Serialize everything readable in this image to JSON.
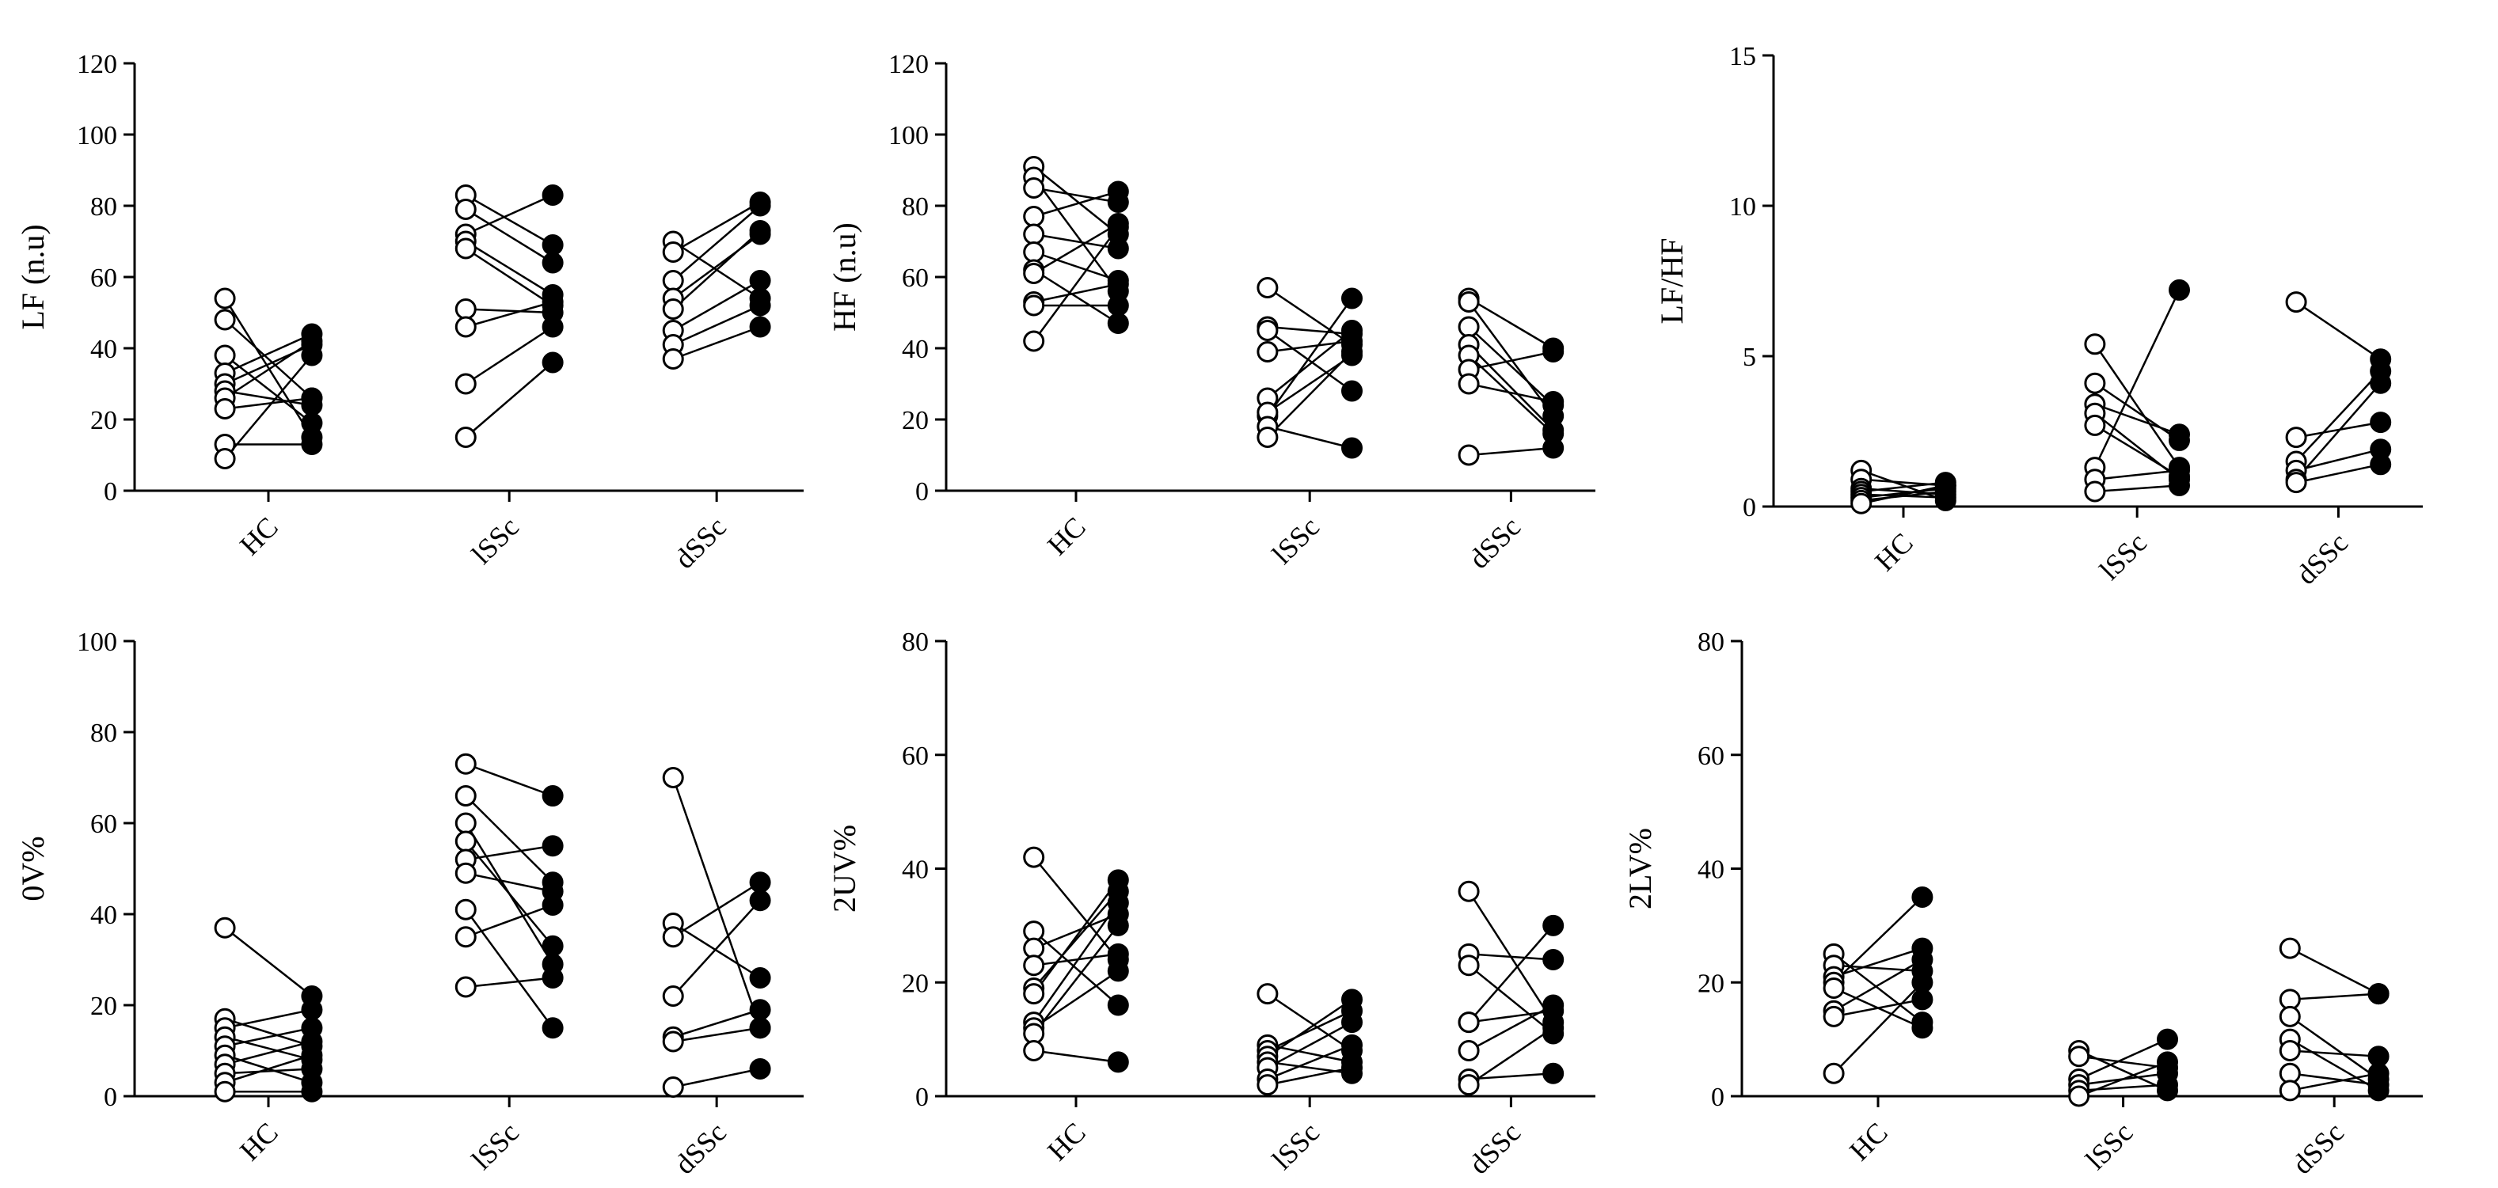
{
  "chart_data": [
    {
      "type": "scatter",
      "ylabel": "LF (n.u)",
      "ylim": [
        0,
        120
      ],
      "yticks": [
        0,
        20,
        40,
        60,
        80,
        100,
        120
      ],
      "categories": [
        "HC",
        "lSSc",
        "dSSc"
      ],
      "groups": [
        {
          "name": "HC",
          "pairs": [
            [
              54,
              15
            ],
            [
              48,
              26
            ],
            [
              38,
              19
            ],
            [
              33,
              44
            ],
            [
              30,
              41
            ],
            [
              28,
              24
            ],
            [
              26,
              42
            ],
            [
              23,
              26
            ],
            [
              13,
              13
            ],
            [
              9,
              38
            ]
          ]
        },
        {
          "name": "lSSc",
          "pairs": [
            [
              83,
              69
            ],
            [
              79,
              64
            ],
            [
              72,
              83
            ],
            [
              70,
              55
            ],
            [
              68,
              52
            ],
            [
              51,
              50
            ],
            [
              46,
              53
            ],
            [
              30,
              46
            ],
            [
              15,
              36
            ]
          ]
        },
        {
          "name": "dSSc",
          "pairs": [
            [
              70,
              54
            ],
            [
              67,
              81
            ],
            [
              59,
              80
            ],
            [
              54,
              72
            ],
            [
              51,
              73
            ],
            [
              45,
              59
            ],
            [
              41,
              52
            ],
            [
              37,
              46
            ]
          ]
        }
      ]
    },
    {
      "type": "scatter",
      "ylabel": "HF (n.u)",
      "ylim": [
        0,
        120
      ],
      "yticks": [
        0,
        20,
        40,
        60,
        80,
        100,
        120
      ],
      "categories": [
        "HC",
        "lSSc",
        "dSSc"
      ],
      "groups": [
        {
          "name": "HC",
          "pairs": [
            [
              91,
              72
            ],
            [
              88,
              56
            ],
            [
              85,
              81
            ],
            [
              77,
              84
            ],
            [
              72,
              68
            ],
            [
              67,
              59
            ],
            [
              62,
              47
            ],
            [
              61,
              75
            ],
            [
              53,
              58
            ],
            [
              52,
              52
            ],
            [
              42,
              74
            ]
          ]
        },
        {
          "name": "lSSc",
          "pairs": [
            [
              57,
              41
            ],
            [
              46,
              44
            ],
            [
              45,
              28
            ],
            [
              39,
              42
            ],
            [
              26,
              45
            ],
            [
              21,
              54
            ],
            [
              22,
              38
            ],
            [
              18,
              12
            ],
            [
              15,
              39
            ]
          ]
        },
        {
          "name": "dSSc",
          "pairs": [
            [
              54,
              40
            ],
            [
              53,
              21
            ],
            [
              46,
              24
            ],
            [
              41,
              17
            ],
            [
              38,
              16
            ],
            [
              34,
              39
            ],
            [
              30,
              25
            ],
            [
              10,
              12
            ]
          ]
        }
      ]
    },
    {
      "type": "scatter",
      "ylabel": "LF/HF",
      "ylim": [
        0,
        15
      ],
      "yticks": [
        0,
        5,
        10,
        15
      ],
      "categories": [
        "HC",
        "lSSc",
        "dSSc"
      ],
      "groups": [
        {
          "name": "HC",
          "pairs": [
            [
              1.2,
              0.2
            ],
            [
              0.9,
              0.7
            ],
            [
              0.6,
              0.4
            ],
            [
              0.5,
              0.8
            ],
            [
              0.4,
              0.3
            ],
            [
              0.3,
              0.6
            ],
            [
              0.2,
              0.5
            ],
            [
              0.1,
              0.7
            ]
          ]
        },
        {
          "name": "lSSc",
          "pairs": [
            [
              5.4,
              1.3
            ],
            [
              4.1,
              2.2
            ],
            [
              3.4,
              2.4
            ],
            [
              3.1,
              0.9
            ],
            [
              2.7,
              1.0
            ],
            [
              1.3,
              7.2
            ],
            [
              0.9,
              1.2
            ],
            [
              0.5,
              0.7
            ]
          ]
        },
        {
          "name": "dSSc",
          "pairs": [
            [
              6.8,
              4.9
            ],
            [
              2.3,
              2.8
            ],
            [
              1.5,
              4.5
            ],
            [
              1.2,
              1.9
            ],
            [
              0.9,
              4.1
            ],
            [
              0.8,
              1.4
            ]
          ]
        }
      ]
    },
    {
      "type": "scatter",
      "ylabel": "0V%",
      "ylim": [
        0,
        100
      ],
      "yticks": [
        0,
        20,
        40,
        60,
        80,
        100
      ],
      "categories": [
        "HC",
        "lSSc",
        "dSSc"
      ],
      "groups": [
        {
          "name": "HC",
          "pairs": [
            [
              37,
              22
            ],
            [
              17,
              11
            ],
            [
              15,
              19
            ],
            [
              13,
              8
            ],
            [
              11,
              15
            ],
            [
              9,
              3
            ],
            [
              7,
              12
            ],
            [
              5,
              6
            ],
            [
              3,
              9
            ],
            [
              1,
              1
            ]
          ]
        },
        {
          "name": "lSSc",
          "pairs": [
            [
              73,
              66
            ],
            [
              66,
              47
            ],
            [
              60,
              29
            ],
            [
              56,
              33
            ],
            [
              52,
              55
            ],
            [
              49,
              45
            ],
            [
              41,
              15
            ],
            [
              35,
              42
            ],
            [
              24,
              26
            ]
          ]
        },
        {
          "name": "dSSc",
          "pairs": [
            [
              70,
              15
            ],
            [
              38,
              26
            ],
            [
              35,
              47
            ],
            [
              22,
              43
            ],
            [
              13,
              19
            ],
            [
              12,
              15
            ],
            [
              2,
              6
            ]
          ]
        }
      ]
    },
    {
      "type": "scatter",
      "ylabel": "2UV%",
      "ylim": [
        0,
        80
      ],
      "yticks": [
        0,
        20,
        40,
        60,
        80
      ],
      "categories": [
        "HC",
        "lSSc",
        "dSSc"
      ],
      "groups": [
        {
          "name": "HC",
          "pairs": [
            [
              42,
              24
            ],
            [
              29,
              16
            ],
            [
              26,
              32
            ],
            [
              23,
              25
            ],
            [
              19,
              36
            ],
            [
              18,
              38
            ],
            [
              13,
              34
            ],
            [
              12,
              22
            ],
            [
              11,
              30
            ],
            [
              8,
              6
            ]
          ]
        },
        {
          "name": "lSSc",
          "pairs": [
            [
              18,
              8
            ],
            [
              9,
              6
            ],
            [
              8,
              15
            ],
            [
              7,
              17
            ],
            [
              6,
              4
            ],
            [
              5,
              13
            ],
            [
              3,
              9
            ],
            [
              2,
              5
            ]
          ]
        },
        {
          "name": "dSSc",
          "pairs": [
            [
              36,
              13
            ],
            [
              25,
              24
            ],
            [
              23,
              11
            ],
            [
              13,
              30
            ],
            [
              13,
              15
            ],
            [
              8,
              16
            ],
            [
              3,
              4
            ],
            [
              2,
              12
            ]
          ]
        }
      ]
    },
    {
      "type": "scatter",
      "ylabel": "2LV%",
      "ylim": [
        0,
        80
      ],
      "yticks": [
        0,
        20,
        40,
        60,
        80
      ],
      "categories": [
        "HC",
        "lSSc",
        "dSSc"
      ],
      "groups": [
        {
          "name": "HC",
          "pairs": [
            [
              25,
              13
            ],
            [
              23,
              22
            ],
            [
              21,
              26
            ],
            [
              20,
              35
            ],
            [
              19,
              12
            ],
            [
              15,
              24
            ],
            [
              14,
              17
            ],
            [
              4,
              20
            ]
          ]
        },
        {
          "name": "lSSc",
          "pairs": [
            [
              8,
              1
            ],
            [
              7,
              5
            ],
            [
              3,
              10
            ],
            [
              2,
              4
            ],
            [
              1,
              2
            ],
            [
              0,
              6
            ]
          ]
        },
        {
          "name": "dSSc",
          "pairs": [
            [
              26,
              18
            ],
            [
              17,
              18
            ],
            [
              14,
              3
            ],
            [
              10,
              1
            ],
            [
              8,
              7
            ],
            [
              4,
              2
            ],
            [
              1,
              4
            ]
          ]
        }
      ]
    }
  ]
}
